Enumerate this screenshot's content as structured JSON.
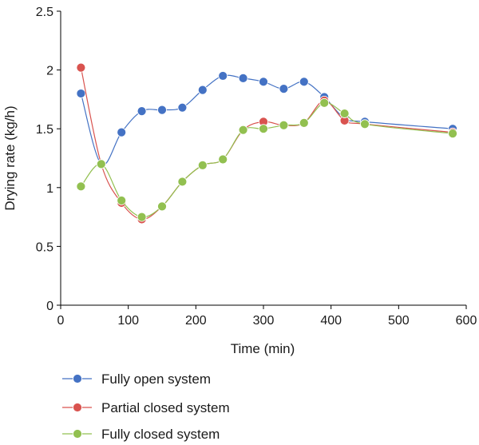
{
  "chart_data": {
    "type": "line",
    "xlabel": "Time (min)",
    "ylabel": "Drying rate (kg/h)",
    "xlim": [
      0,
      600
    ],
    "ylim": [
      0,
      2.5
    ],
    "xticks": [
      "0",
      "100",
      "200",
      "300",
      "400",
      "500",
      "600"
    ],
    "yticks": [
      "0",
      "0.5",
      "1",
      "1.5",
      "2",
      "2.5"
    ],
    "grid": false,
    "legend_position": "bottom-left",
    "series": [
      {
        "name": "Fully open system",
        "color": "#4472C4",
        "x": [
          30,
          60,
          90,
          120,
          150,
          180,
          210,
          240,
          270,
          300,
          330,
          360,
          390,
          420,
          450,
          580
        ],
        "y": [
          1.8,
          1.2,
          1.47,
          1.65,
          1.66,
          1.68,
          1.83,
          1.95,
          1.93,
          1.9,
          1.84,
          1.9,
          1.77,
          1.59,
          1.56,
          1.5
        ]
      },
      {
        "name": "Partial closed system",
        "color": "#D9534F",
        "x": [
          30,
          60,
          90,
          120,
          150,
          180,
          210,
          240,
          270,
          300,
          330,
          360,
          390,
          420,
          450,
          580
        ],
        "y": [
          2.02,
          1.2,
          0.87,
          0.73,
          0.84,
          1.05,
          1.19,
          1.24,
          1.49,
          1.56,
          1.53,
          1.55,
          1.74,
          1.57,
          1.54,
          1.47
        ]
      },
      {
        "name": "Fully closed system",
        "color": "#92C050",
        "x": [
          30,
          60,
          90,
          120,
          150,
          180,
          210,
          240,
          270,
          300,
          330,
          360,
          390,
          420,
          450,
          580
        ],
        "y": [
          1.01,
          1.2,
          0.89,
          0.75,
          0.84,
          1.05,
          1.19,
          1.24,
          1.49,
          1.5,
          1.53,
          1.55,
          1.72,
          1.63,
          1.54,
          1.46
        ]
      }
    ]
  }
}
